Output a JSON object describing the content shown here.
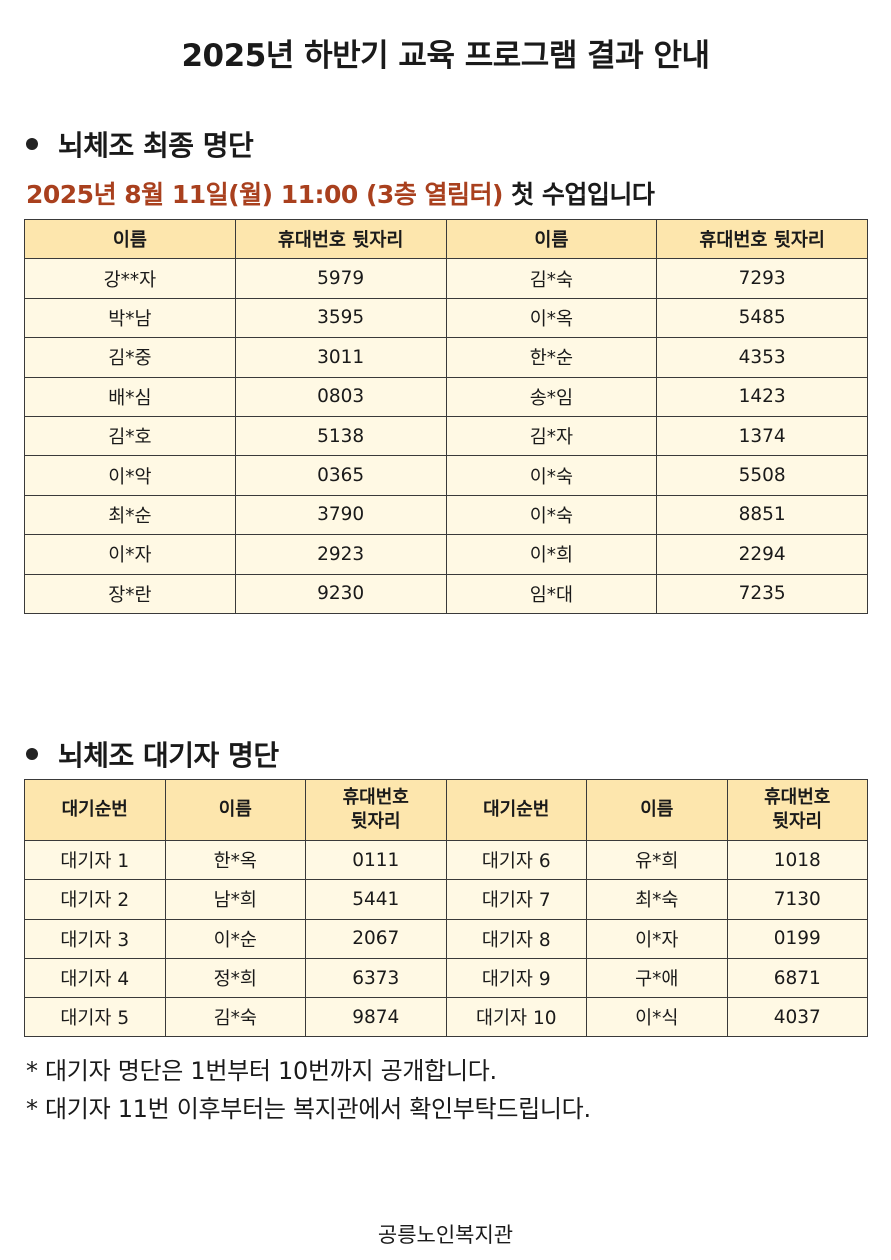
{
  "title": "2025년 하반기 교육 프로그램 결과 안내",
  "final_section": {
    "heading": "뇌체조 최종 명단",
    "notice_highlight": "2025년 8월 11일(월) 11:00 (3층 열림터)",
    "notice_rest": " 첫 수업입니다",
    "headers": [
      "이름",
      "휴대번호 뒷자리",
      "이름",
      "휴대번호 뒷자리"
    ],
    "rows": [
      [
        "강**자",
        "5979",
        "김*숙",
        "7293"
      ],
      [
        "박*남",
        "3595",
        "이*옥",
        "5485"
      ],
      [
        "김*중",
        "3011",
        "한*순",
        "4353"
      ],
      [
        "배*심",
        "0803",
        "송*임",
        "1423"
      ],
      [
        "김*호",
        "5138",
        "김*자",
        "1374"
      ],
      [
        "이*악",
        "0365",
        "이*숙",
        "5508"
      ],
      [
        "최*순",
        "3790",
        "이*숙",
        "8851"
      ],
      [
        "이*자",
        "2923",
        "이*희",
        "2294"
      ],
      [
        "장*란",
        "9230",
        "임*대",
        "7235"
      ]
    ]
  },
  "waitlist_section": {
    "heading": "뇌체조 대기자 명단",
    "headers": [
      [
        "대기순번"
      ],
      [
        "이름"
      ],
      [
        "휴대번호",
        "뒷자리"
      ],
      [
        "대기순번"
      ],
      [
        "이름"
      ],
      [
        "휴대번호",
        "뒷자리"
      ]
    ],
    "rows": [
      [
        "대기자 1",
        "한*옥",
        "0111",
        "대기자 6",
        "유*희",
        "1018"
      ],
      [
        "대기자 2",
        "남*희",
        "5441",
        "대기자 7",
        "최*숙",
        "7130"
      ],
      [
        "대기자 3",
        "이*순",
        "2067",
        "대기자 8",
        "이*자",
        "0199"
      ],
      [
        "대기자 4",
        "정*희",
        "6373",
        "대기자 9",
        "구*애",
        "6871"
      ],
      [
        "대기자 5",
        "김*숙",
        "9874",
        "대기자 10",
        "이*식",
        "4037"
      ]
    ]
  },
  "notes": [
    "* 대기자 명단은 1번부터 10번까지 공개합니다.",
    "* 대기자 11번 이후부터는 복지관에서 확인부탁드립니다."
  ],
  "footer": "공릉노인복지관",
  "colors": {
    "header_bg": "#fde6ad",
    "cell_bg": "#fff9e4",
    "highlight_text": "#a9401e"
  }
}
